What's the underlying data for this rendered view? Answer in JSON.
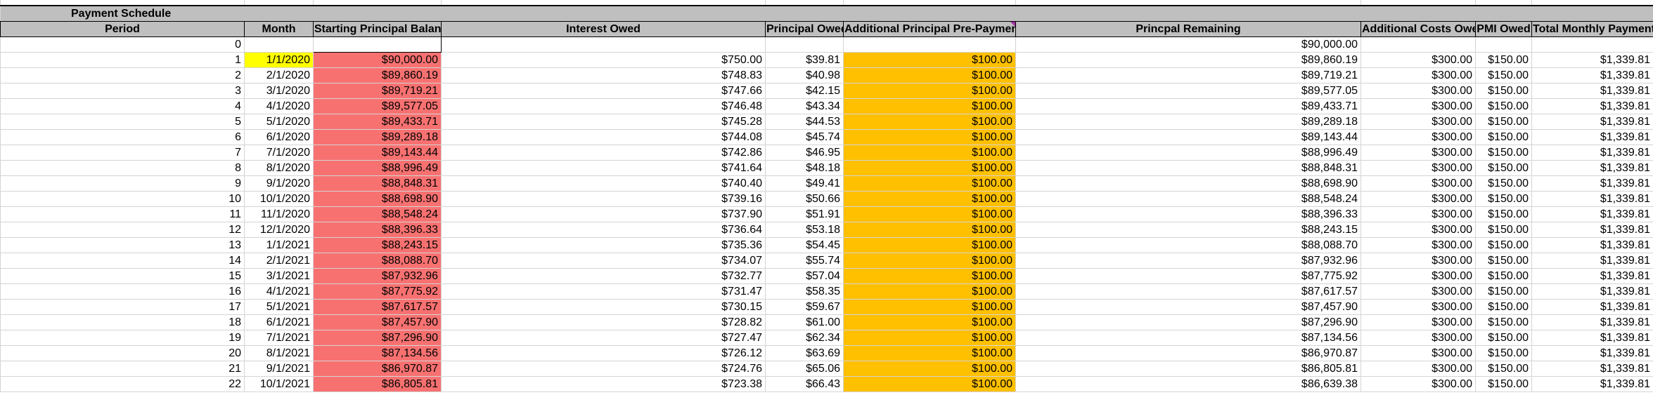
{
  "sheet": {
    "title": "Payment Schedule",
    "headers": {
      "period": "Period",
      "month": "Month",
      "start": "Starting Principal Balance",
      "interest": "Interest Owed",
      "principal": "Principal Owed",
      "prepay": "Additional Principal Pre-Payment",
      "remaining": "Princpal Remaining",
      "costs": "Additional Costs Owed",
      "pmi": "PMI Owed",
      "total": "Total Monthly Payment"
    },
    "initial_row": {
      "period": "0",
      "remaining": "$90,000.00"
    },
    "rows": [
      {
        "period": "1",
        "month": "1/1/2020",
        "start": "$90,000.00",
        "interest": "$750.00",
        "principal": "$39.81",
        "prepay": "$100.00",
        "remaining": "$89,860.19",
        "costs": "$300.00",
        "pmi": "$150.00",
        "total": "$1,339.81"
      },
      {
        "period": "2",
        "month": "2/1/2020",
        "start": "$89,860.19",
        "interest": "$748.83",
        "principal": "$40.98",
        "prepay": "$100.00",
        "remaining": "$89,719.21",
        "costs": "$300.00",
        "pmi": "$150.00",
        "total": "$1,339.81"
      },
      {
        "period": "3",
        "month": "3/1/2020",
        "start": "$89,719.21",
        "interest": "$747.66",
        "principal": "$42.15",
        "prepay": "$100.00",
        "remaining": "$89,577.05",
        "costs": "$300.00",
        "pmi": "$150.00",
        "total": "$1,339.81"
      },
      {
        "period": "4",
        "month": "4/1/2020",
        "start": "$89,577.05",
        "interest": "$746.48",
        "principal": "$43.34",
        "prepay": "$100.00",
        "remaining": "$89,433.71",
        "costs": "$300.00",
        "pmi": "$150.00",
        "total": "$1,339.81"
      },
      {
        "period": "5",
        "month": "5/1/2020",
        "start": "$89,433.71",
        "interest": "$745.28",
        "principal": "$44.53",
        "prepay": "$100.00",
        "remaining": "$89,289.18",
        "costs": "$300.00",
        "pmi": "$150.00",
        "total": "$1,339.81"
      },
      {
        "period": "6",
        "month": "6/1/2020",
        "start": "$89,289.18",
        "interest": "$744.08",
        "principal": "$45.74",
        "prepay": "$100.00",
        "remaining": "$89,143.44",
        "costs": "$300.00",
        "pmi": "$150.00",
        "total": "$1,339.81"
      },
      {
        "period": "7",
        "month": "7/1/2020",
        "start": "$89,143.44",
        "interest": "$742.86",
        "principal": "$46.95",
        "prepay": "$100.00",
        "remaining": "$88,996.49",
        "costs": "$300.00",
        "pmi": "$150.00",
        "total": "$1,339.81"
      },
      {
        "period": "8",
        "month": "8/1/2020",
        "start": "$88,996.49",
        "interest": "$741.64",
        "principal": "$48.18",
        "prepay": "$100.00",
        "remaining": "$88,848.31",
        "costs": "$300.00",
        "pmi": "$150.00",
        "total": "$1,339.81"
      },
      {
        "period": "9",
        "month": "9/1/2020",
        "start": "$88,848.31",
        "interest": "$740.40",
        "principal": "$49.41",
        "prepay": "$100.00",
        "remaining": "$88,698.90",
        "costs": "$300.00",
        "pmi": "$150.00",
        "total": "$1,339.81"
      },
      {
        "period": "10",
        "month": "10/1/2020",
        "start": "$88,698.90",
        "interest": "$739.16",
        "principal": "$50.66",
        "prepay": "$100.00",
        "remaining": "$88,548.24",
        "costs": "$300.00",
        "pmi": "$150.00",
        "total": "$1,339.81"
      },
      {
        "period": "11",
        "month": "11/1/2020",
        "start": "$88,548.24",
        "interest": "$737.90",
        "principal": "$51.91",
        "prepay": "$100.00",
        "remaining": "$88,396.33",
        "costs": "$300.00",
        "pmi": "$150.00",
        "total": "$1,339.81"
      },
      {
        "period": "12",
        "month": "12/1/2020",
        "start": "$88,396.33",
        "interest": "$736.64",
        "principal": "$53.18",
        "prepay": "$100.00",
        "remaining": "$88,243.15",
        "costs": "$300.00",
        "pmi": "$150.00",
        "total": "$1,339.81"
      },
      {
        "period": "13",
        "month": "1/1/2021",
        "start": "$88,243.15",
        "interest": "$735.36",
        "principal": "$54.45",
        "prepay": "$100.00",
        "remaining": "$88,088.70",
        "costs": "$300.00",
        "pmi": "$150.00",
        "total": "$1,339.81"
      },
      {
        "period": "14",
        "month": "2/1/2021",
        "start": "$88,088.70",
        "interest": "$734.07",
        "principal": "$55.74",
        "prepay": "$100.00",
        "remaining": "$87,932.96",
        "costs": "$300.00",
        "pmi": "$150.00",
        "total": "$1,339.81"
      },
      {
        "period": "15",
        "month": "3/1/2021",
        "start": "$87,932.96",
        "interest": "$732.77",
        "principal": "$57.04",
        "prepay": "$100.00",
        "remaining": "$87,775.92",
        "costs": "$300.00",
        "pmi": "$150.00",
        "total": "$1,339.81"
      },
      {
        "period": "16",
        "month": "4/1/2021",
        "start": "$87,775.92",
        "interest": "$731.47",
        "principal": "$58.35",
        "prepay": "$100.00",
        "remaining": "$87,617.57",
        "costs": "$300.00",
        "pmi": "$150.00",
        "total": "$1,339.81"
      },
      {
        "period": "17",
        "month": "5/1/2021",
        "start": "$87,617.57",
        "interest": "$730.15",
        "principal": "$59.67",
        "prepay": "$100.00",
        "remaining": "$87,457.90",
        "costs": "$300.00",
        "pmi": "$150.00",
        "total": "$1,339.81"
      },
      {
        "period": "18",
        "month": "6/1/2021",
        "start": "$87,457.90",
        "interest": "$728.82",
        "principal": "$61.00",
        "prepay": "$100.00",
        "remaining": "$87,296.90",
        "costs": "$300.00",
        "pmi": "$150.00",
        "total": "$1,339.81"
      },
      {
        "period": "19",
        "month": "7/1/2021",
        "start": "$87,296.90",
        "interest": "$727.47",
        "principal": "$62.34",
        "prepay": "$100.00",
        "remaining": "$87,134.56",
        "costs": "$300.00",
        "pmi": "$150.00",
        "total": "$1,339.81"
      },
      {
        "period": "20",
        "month": "8/1/2021",
        "start": "$87,134.56",
        "interest": "$726.12",
        "principal": "$63.69",
        "prepay": "$100.00",
        "remaining": "$86,970.87",
        "costs": "$300.00",
        "pmi": "$150.00",
        "total": "$1,339.81"
      },
      {
        "period": "21",
        "month": "9/1/2021",
        "start": "$86,970.87",
        "interest": "$724.76",
        "principal": "$65.06",
        "prepay": "$100.00",
        "remaining": "$86,805.81",
        "costs": "$300.00",
        "pmi": "$150.00",
        "total": "$1,339.81"
      },
      {
        "period": "22",
        "month": "10/1/2021",
        "start": "$86,805.81",
        "interest": "$723.38",
        "principal": "$66.43",
        "prepay": "$100.00",
        "remaining": "$86,639.38",
        "costs": "$300.00",
        "pmi": "$150.00",
        "total": "$1,339.81"
      }
    ]
  },
  "colors": {
    "header_fill": "#bfbfbf",
    "start_balance_fill": "#f87171",
    "prepayment_fill": "#ffc000",
    "selected_cell_fill": "#ffff00",
    "comment_marker": "#a32fa3"
  }
}
